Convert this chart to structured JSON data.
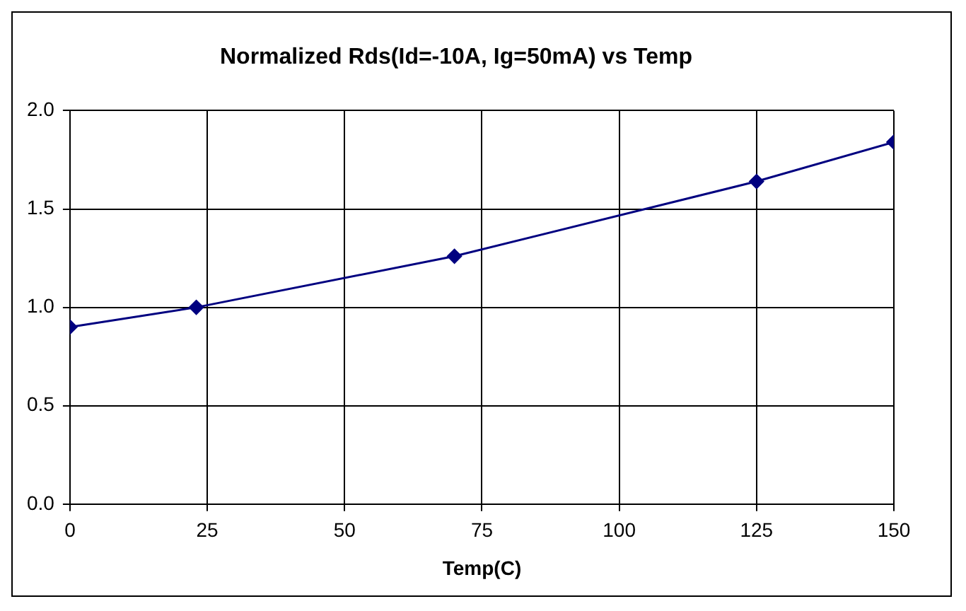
{
  "chart_data": {
    "type": "line",
    "title": "Normalized Rds(Id=-10A, Ig=50mA) vs Temp",
    "xlabel": "Temp(C)",
    "x": [
      0,
      23,
      70,
      125,
      150
    ],
    "series": [
      {
        "color": "#000080",
        "values": [
          0.9,
          1.0,
          1.26,
          1.64,
          1.84
        ]
      }
    ],
    "xlim": [
      0,
      150
    ],
    "xticks": [
      0,
      25,
      50,
      75,
      100,
      125,
      150
    ],
    "ylim": [
      0,
      2
    ],
    "yticks": [
      {
        "value": 0,
        "label": "0.0"
      },
      {
        "value": 0.5,
        "label": "0.5"
      },
      {
        "value": 1,
        "label": "1.0"
      },
      {
        "value": 1.5,
        "label": "1.5"
      },
      {
        "value": 2,
        "label": "2.0"
      }
    ],
    "grid": true,
    "legend": false,
    "marker": "diamond",
    "line_style": "solid"
  }
}
